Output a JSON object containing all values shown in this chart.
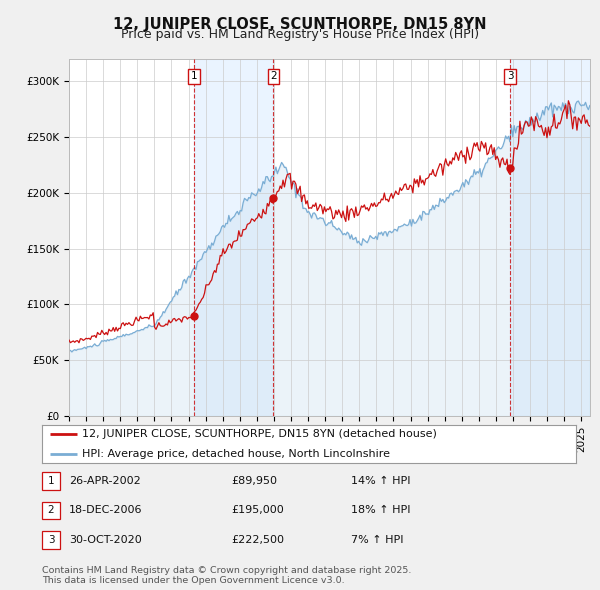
{
  "title": "12, JUNIPER CLOSE, SCUNTHORPE, DN15 8YN",
  "subtitle": "Price paid vs. HM Land Registry's House Price Index (HPI)",
  "background_color": "#f0f0f0",
  "plot_bg_color": "#ffffff",
  "grid_color": "#cccccc",
  "line1_color": "#cc1111",
  "line2_color": "#7aadd4",
  "line2_fill_color": "#c8dff0",
  "sale_marker_color": "#cc1111",
  "vline_color": "#cc1111",
  "shade_color": "#ddeeff",
  "ylim": [
    0,
    320000
  ],
  "yticks": [
    0,
    50000,
    100000,
    150000,
    200000,
    250000,
    300000
  ],
  "ytick_labels": [
    "£0",
    "£50K",
    "£100K",
    "£150K",
    "£200K",
    "£250K",
    "£300K"
  ],
  "xstart_year": 1995,
  "xend_year": 2025,
  "legend1_label": "12, JUNIPER CLOSE, SCUNTHORPE, DN15 8YN (detached house)",
  "legend2_label": "HPI: Average price, detached house, North Lincolnshire",
  "sale1_date": "26-APR-2002",
  "sale1_price": 89950,
  "sale1_hpi": "14%",
  "sale1_year": 2002.32,
  "sale2_date": "18-DEC-2006",
  "sale2_price": 195000,
  "sale2_hpi": "18%",
  "sale2_year": 2006.96,
  "sale3_date": "30-OCT-2020",
  "sale3_price": 222500,
  "sale3_hpi": "7%",
  "sale3_year": 2020.83,
  "footer": "Contains HM Land Registry data © Crown copyright and database right 2025.\nThis data is licensed under the Open Government Licence v3.0.",
  "title_fontsize": 10.5,
  "subtitle_fontsize": 9,
  "tick_fontsize": 7.5,
  "legend_fontsize": 8,
  "footer_fontsize": 6.8
}
